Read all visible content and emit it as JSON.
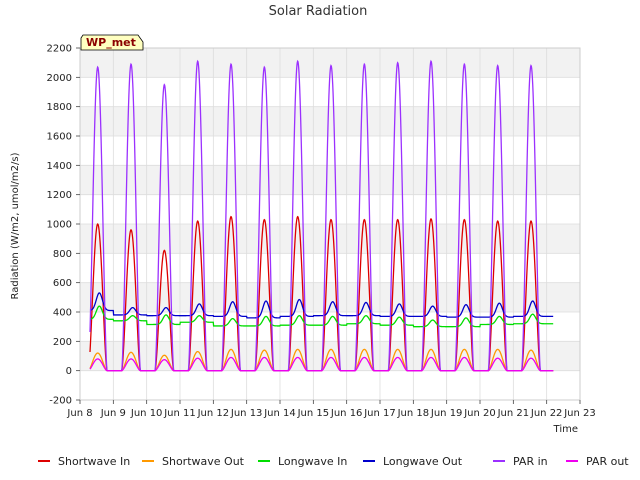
{
  "chart_data": {
    "type": "line",
    "title": "Solar Radiation",
    "xlabel": "Time",
    "ylabel": "Radiation (W/m2, umol/m2/s)",
    "station_label": "WP_met",
    "x_range": [
      "Jun 8",
      "Jun 23"
    ],
    "ylim": [
      -200,
      2200
    ],
    "yticks": [
      -200,
      0,
      200,
      400,
      600,
      800,
      1000,
      1200,
      1400,
      1600,
      1800,
      2000,
      2200
    ],
    "xticks": [
      "Jun 8",
      "Jun 9",
      "Jun 10",
      "Jun 11",
      "Jun 12",
      "Jun 13",
      "Jun 14",
      "Jun 15",
      "Jun 16",
      "Jun 17",
      "Jun 18",
      "Jun 19",
      "Jun 20",
      "Jun 21",
      "Jun 22",
      "Jun 23"
    ],
    "data_span_days": [
      8.3,
      22.2
    ],
    "grid": true,
    "legend_position": "bottom",
    "days": [
      "Jun 8",
      "Jun 9",
      "Jun 10",
      "Jun 11",
      "Jun 12",
      "Jun 13",
      "Jun 14",
      "Jun 15",
      "Jun 16",
      "Jun 17",
      "Jun 18",
      "Jun 19",
      "Jun 20",
      "Jun 21"
    ],
    "series": [
      {
        "name": "Shortwave In",
        "color": "#dd0000",
        "kind": "diurnal",
        "daily_peak": [
          1000,
          960,
          820,
          1020,
          1050,
          1030,
          1050,
          1030,
          1030,
          1030,
          1035,
          1030,
          1020,
          1020
        ],
        "night_value": 0
      },
      {
        "name": "Shortwave Out",
        "color": "#ff9900",
        "kind": "diurnal",
        "daily_peak": [
          120,
          125,
          105,
          130,
          145,
          140,
          145,
          145,
          145,
          145,
          145,
          145,
          145,
          140
        ],
        "night_value": 0
      },
      {
        "name": "Longwave In",
        "color": "#00dd00",
        "kind": "baseline",
        "daily_min": [
          350,
          340,
          315,
          330,
          305,
          305,
          310,
          310,
          320,
          310,
          300,
          300,
          315,
          320
        ],
        "daily_peak": [
          440,
          375,
          380,
          375,
          355,
          370,
          375,
          370,
          375,
          365,
          345,
          360,
          370,
          385
        ]
      },
      {
        "name": "Longwave Out",
        "color": "#0000cc",
        "kind": "baseline",
        "daily_min": [
          410,
          380,
          375,
          375,
          370,
          360,
          370,
          375,
          375,
          370,
          370,
          365,
          365,
          370
        ],
        "daily_peak": [
          530,
          430,
          430,
          455,
          470,
          475,
          485,
          470,
          465,
          455,
          440,
          450,
          460,
          475
        ]
      },
      {
        "name": "PAR in",
        "color": "#9b30ff",
        "kind": "diurnal",
        "daily_peak": [
          2070,
          2090,
          1950,
          2110,
          2090,
          2070,
          2110,
          2080,
          2090,
          2100,
          2110,
          2090,
          2080,
          2080
        ],
        "night_value": 0
      },
      {
        "name": "PAR out",
        "color": "#ee00ee",
        "kind": "diurnal",
        "daily_peak": [
          80,
          80,
          75,
          85,
          90,
          90,
          90,
          90,
          90,
          90,
          90,
          90,
          85,
          85
        ],
        "night_value": 0
      }
    ]
  }
}
